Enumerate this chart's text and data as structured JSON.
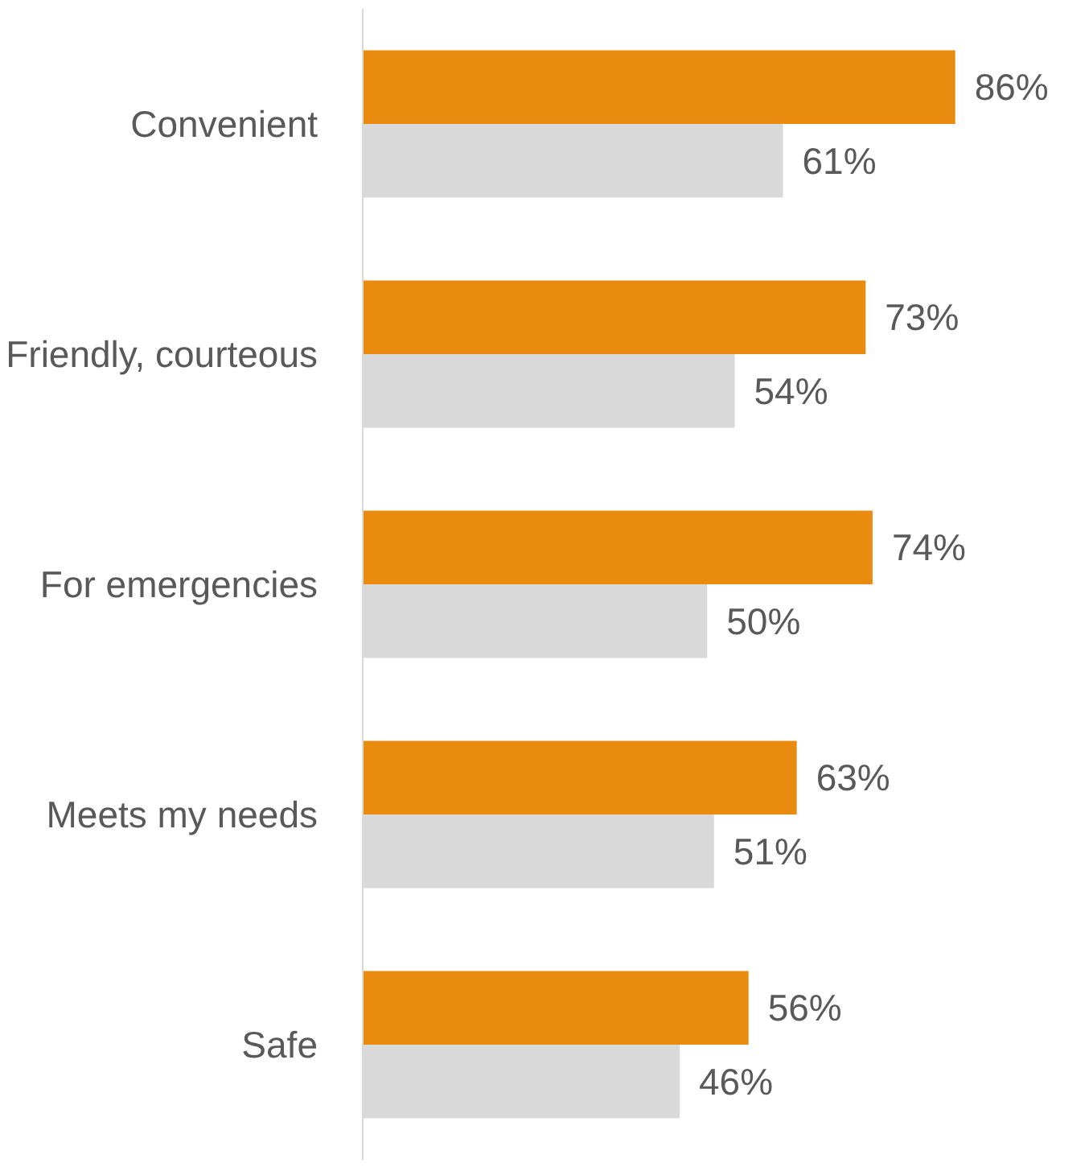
{
  "chart_data": {
    "type": "bar",
    "orientation": "horizontal",
    "categories": [
      "Convenient",
      "Friendly, courteous",
      "For emergencies",
      "Meets my needs",
      "Safe"
    ],
    "series": [
      {
        "color": "#e98b0e",
        "values": [
          86,
          73,
          74,
          63,
          56
        ],
        "value_labels": [
          "86%",
          "73%",
          "74%",
          "63%",
          "56%"
        ]
      },
      {
        "color": "#d9d9d9",
        "values": [
          61,
          54,
          50,
          51,
          46
        ],
        "value_labels": [
          "61%",
          "54%",
          "50%",
          "51%",
          "46%"
        ]
      }
    ],
    "grid": false
  }
}
